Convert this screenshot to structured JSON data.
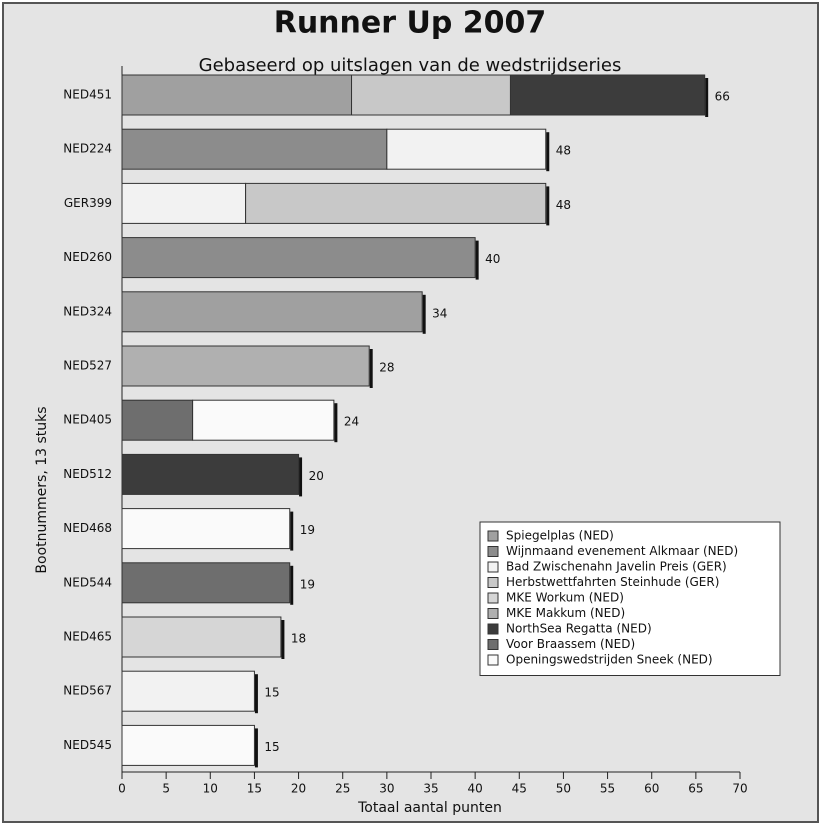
{
  "chart_data": {
    "type": "stacked-bar-horizontal",
    "title": "Runner Up 2007",
    "subtitle": "Gebaseerd op uitslagen van de wedstrijdseries",
    "x_label": "Totaal aantal punten",
    "y_label": "Bootnummers, 13 stuks",
    "categories": [
      "NED451",
      "NED224",
      "GER399",
      "NED260",
      "NED324",
      "NED527",
      "NED405",
      "NED512",
      "NED468",
      "NED544",
      "NED465",
      "NED567",
      "NED545"
    ],
    "totals": [
      66,
      48,
      48,
      40,
      34,
      28,
      24,
      20,
      19,
      19,
      18,
      15,
      15
    ],
    "series": [
      {
        "name": "Spiegelplas (NED)",
        "color": "#a0a0a0",
        "values": [
          26,
          0,
          0,
          0,
          34,
          0,
          0,
          0,
          0,
          0,
          0,
          0,
          0
        ]
      },
      {
        "name": "Wijnmaand evenement Alkmaar (NED)",
        "color": "#8c8c8c",
        "values": [
          0,
          30,
          0,
          40,
          0,
          0,
          0,
          0,
          0,
          0,
          0,
          0,
          0
        ]
      },
      {
        "name": "Bad Zwischenahn Javelin Preis (GER)",
        "color": "#f2f2f2",
        "values": [
          0,
          18,
          14,
          0,
          0,
          0,
          0,
          0,
          0,
          0,
          0,
          15,
          0
        ]
      },
      {
        "name": "Herbstwettfahrten Steinhude (GER)",
        "color": "#c8c8c8",
        "values": [
          18,
          0,
          34,
          0,
          0,
          0,
          0,
          0,
          0,
          0,
          0,
          0,
          0
        ]
      },
      {
        "name": "MKE Workum (NED)",
        "color": "#d6d6d6",
        "values": [
          0,
          0,
          0,
          0,
          0,
          0,
          0,
          0,
          0,
          0,
          18,
          0,
          0
        ]
      },
      {
        "name": "MKE Makkum (NED)",
        "color": "#b0b0b0",
        "values": [
          0,
          0,
          0,
          0,
          0,
          28,
          0,
          0,
          0,
          0,
          0,
          0,
          0
        ]
      },
      {
        "name": "NorthSea Regatta (NED)",
        "color": "#3c3c3c",
        "values": [
          22,
          0,
          0,
          0,
          0,
          0,
          0,
          20,
          0,
          0,
          0,
          0,
          0
        ]
      },
      {
        "name": "Voor Braassem (NED)",
        "color": "#6e6e6e",
        "values": [
          0,
          0,
          0,
          0,
          0,
          0,
          8,
          0,
          0,
          19,
          0,
          0,
          0
        ]
      },
      {
        "name": "Openingswedstrijden Sneek (NED)",
        "color": "#fafafa",
        "values": [
          0,
          0,
          0,
          0,
          0,
          0,
          16,
          0,
          19,
          0,
          0,
          0,
          15
        ]
      }
    ],
    "xlim": [
      0,
      70
    ],
    "xticks": [
      0,
      5,
      10,
      15,
      20,
      25,
      30,
      35,
      40,
      45,
      50,
      55,
      60,
      65,
      70
    ],
    "legend": "lower-right"
  }
}
